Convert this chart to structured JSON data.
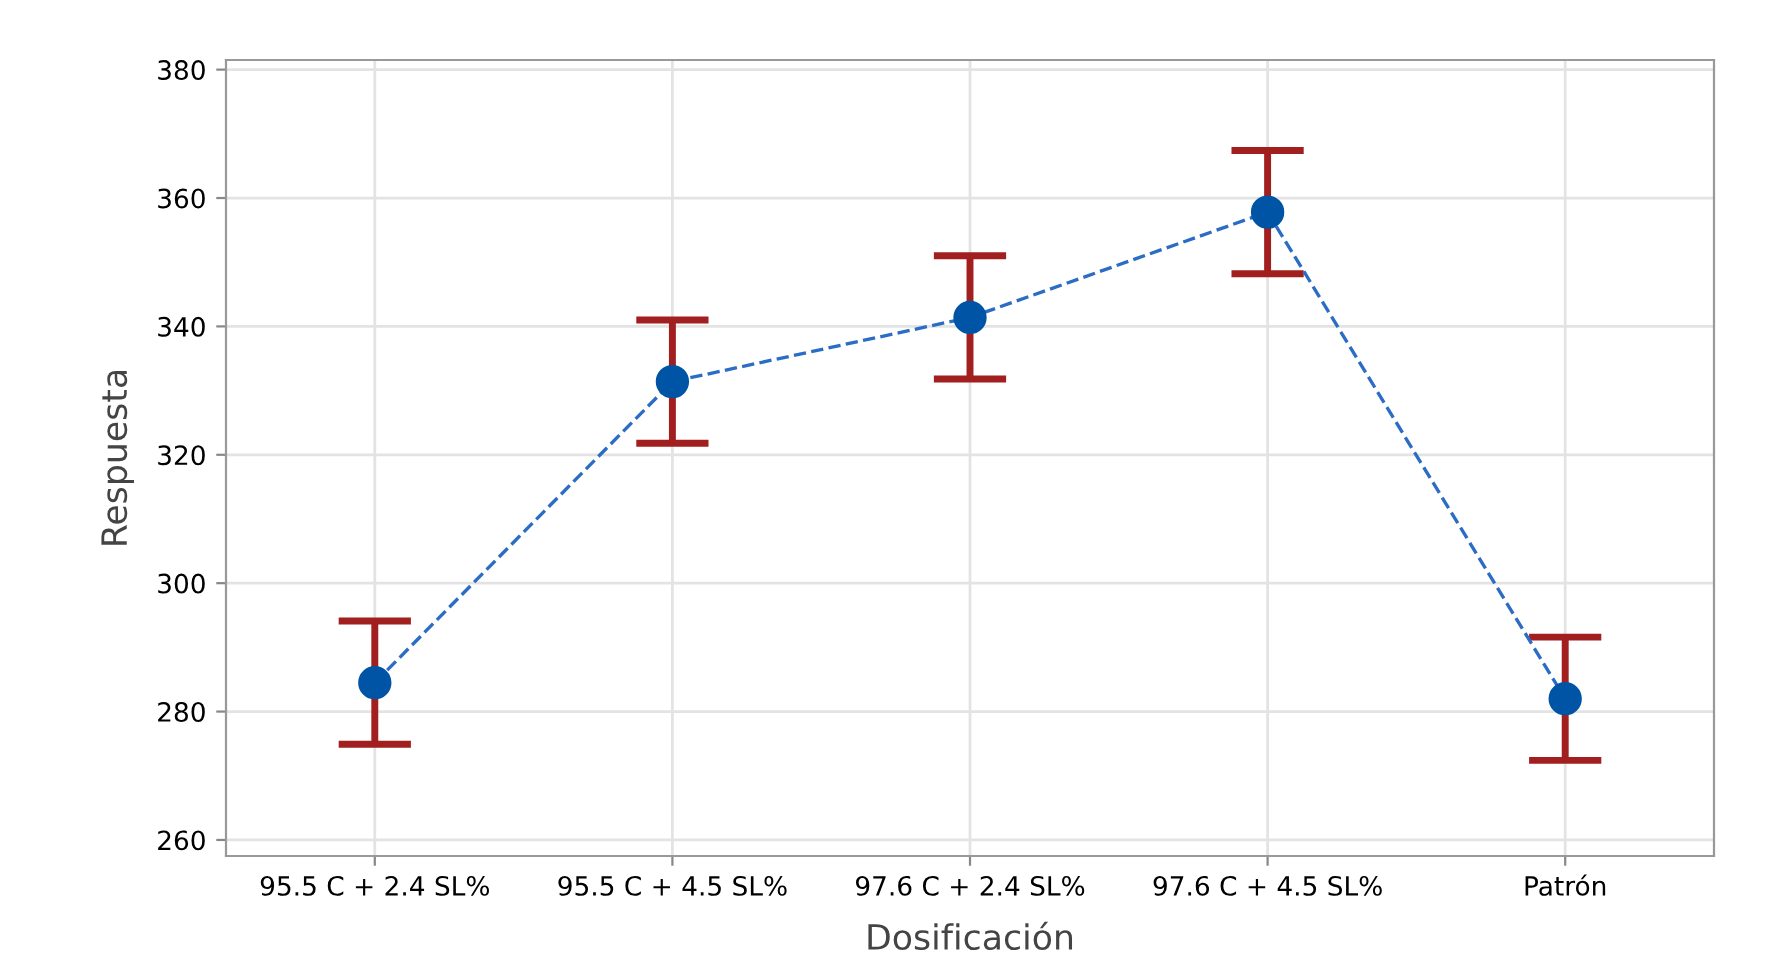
{
  "chart_data": {
    "type": "line",
    "xlabel": "Dosificación",
    "ylabel": "Respuesta",
    "categories": [
      "95.5 C + 2.4 SL%",
      "95.5 C + 4.5 SL%",
      "97.6 C + 2.4 SL%",
      "97.6 C + 4.5 SL%",
      "Patrón"
    ],
    "series": [
      {
        "color": "#0054a6",
        "values": [
          284.5,
          331.4,
          341.4,
          357.8,
          282.0
        ],
        "errors": [
          9.6,
          9.6,
          9.6,
          9.6,
          9.6
        ]
      }
    ],
    "ylim": [
      257.5,
      381.5
    ],
    "yticks": [
      260,
      280,
      300,
      320,
      340,
      360,
      380
    ],
    "grid": true,
    "marker": "circle",
    "line_style": "dashed"
  }
}
